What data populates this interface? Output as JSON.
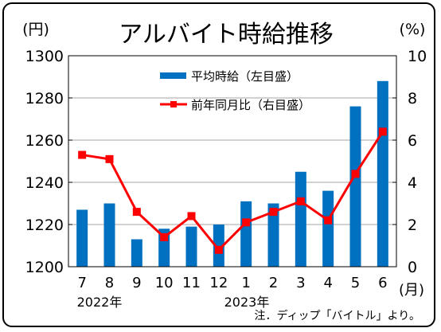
{
  "colors": {
    "bar": "#0070C0",
    "line": "#FF0000",
    "grid": "#A6A6A6"
  },
  "chart_data": {
    "type": "bar",
    "title": "アルバイト時給推移",
    "categories": [
      "7",
      "8",
      "9",
      "10",
      "11",
      "12",
      "1",
      "2",
      "3",
      "4",
      "5",
      "6"
    ],
    "x_unit": "(月)",
    "year_labels": [
      "2022年",
      "2023年"
    ],
    "left_axis": {
      "unit": "(円)",
      "ylim": [
        1200,
        1300
      ],
      "ticks": [
        "1300",
        "1280",
        "1260",
        "1240",
        "1220",
        "1200"
      ]
    },
    "right_axis": {
      "unit": "(%)",
      "ylim": [
        0,
        10
      ],
      "ticks": [
        "10",
        "8",
        "6",
        "4",
        "2",
        "0"
      ]
    },
    "grid": true,
    "legend_placement": "top-center",
    "series": [
      {
        "name": "平均時給（左目盛）",
        "type": "bar",
        "axis": "left",
        "values": [
          1227,
          1230,
          1213,
          1218,
          1219,
          1220,
          1231,
          1230,
          1245,
          1236,
          1276,
          1288
        ]
      },
      {
        "name": "前年同月比（右目盛）",
        "type": "line",
        "axis": "right",
        "values": [
          5.3,
          5.1,
          2.6,
          1.4,
          2.4,
          0.8,
          2.1,
          2.6,
          3.1,
          2.2,
          4.4,
          6.4
        ]
      }
    ],
    "note": "注．ディップ「バイトル」より。"
  }
}
